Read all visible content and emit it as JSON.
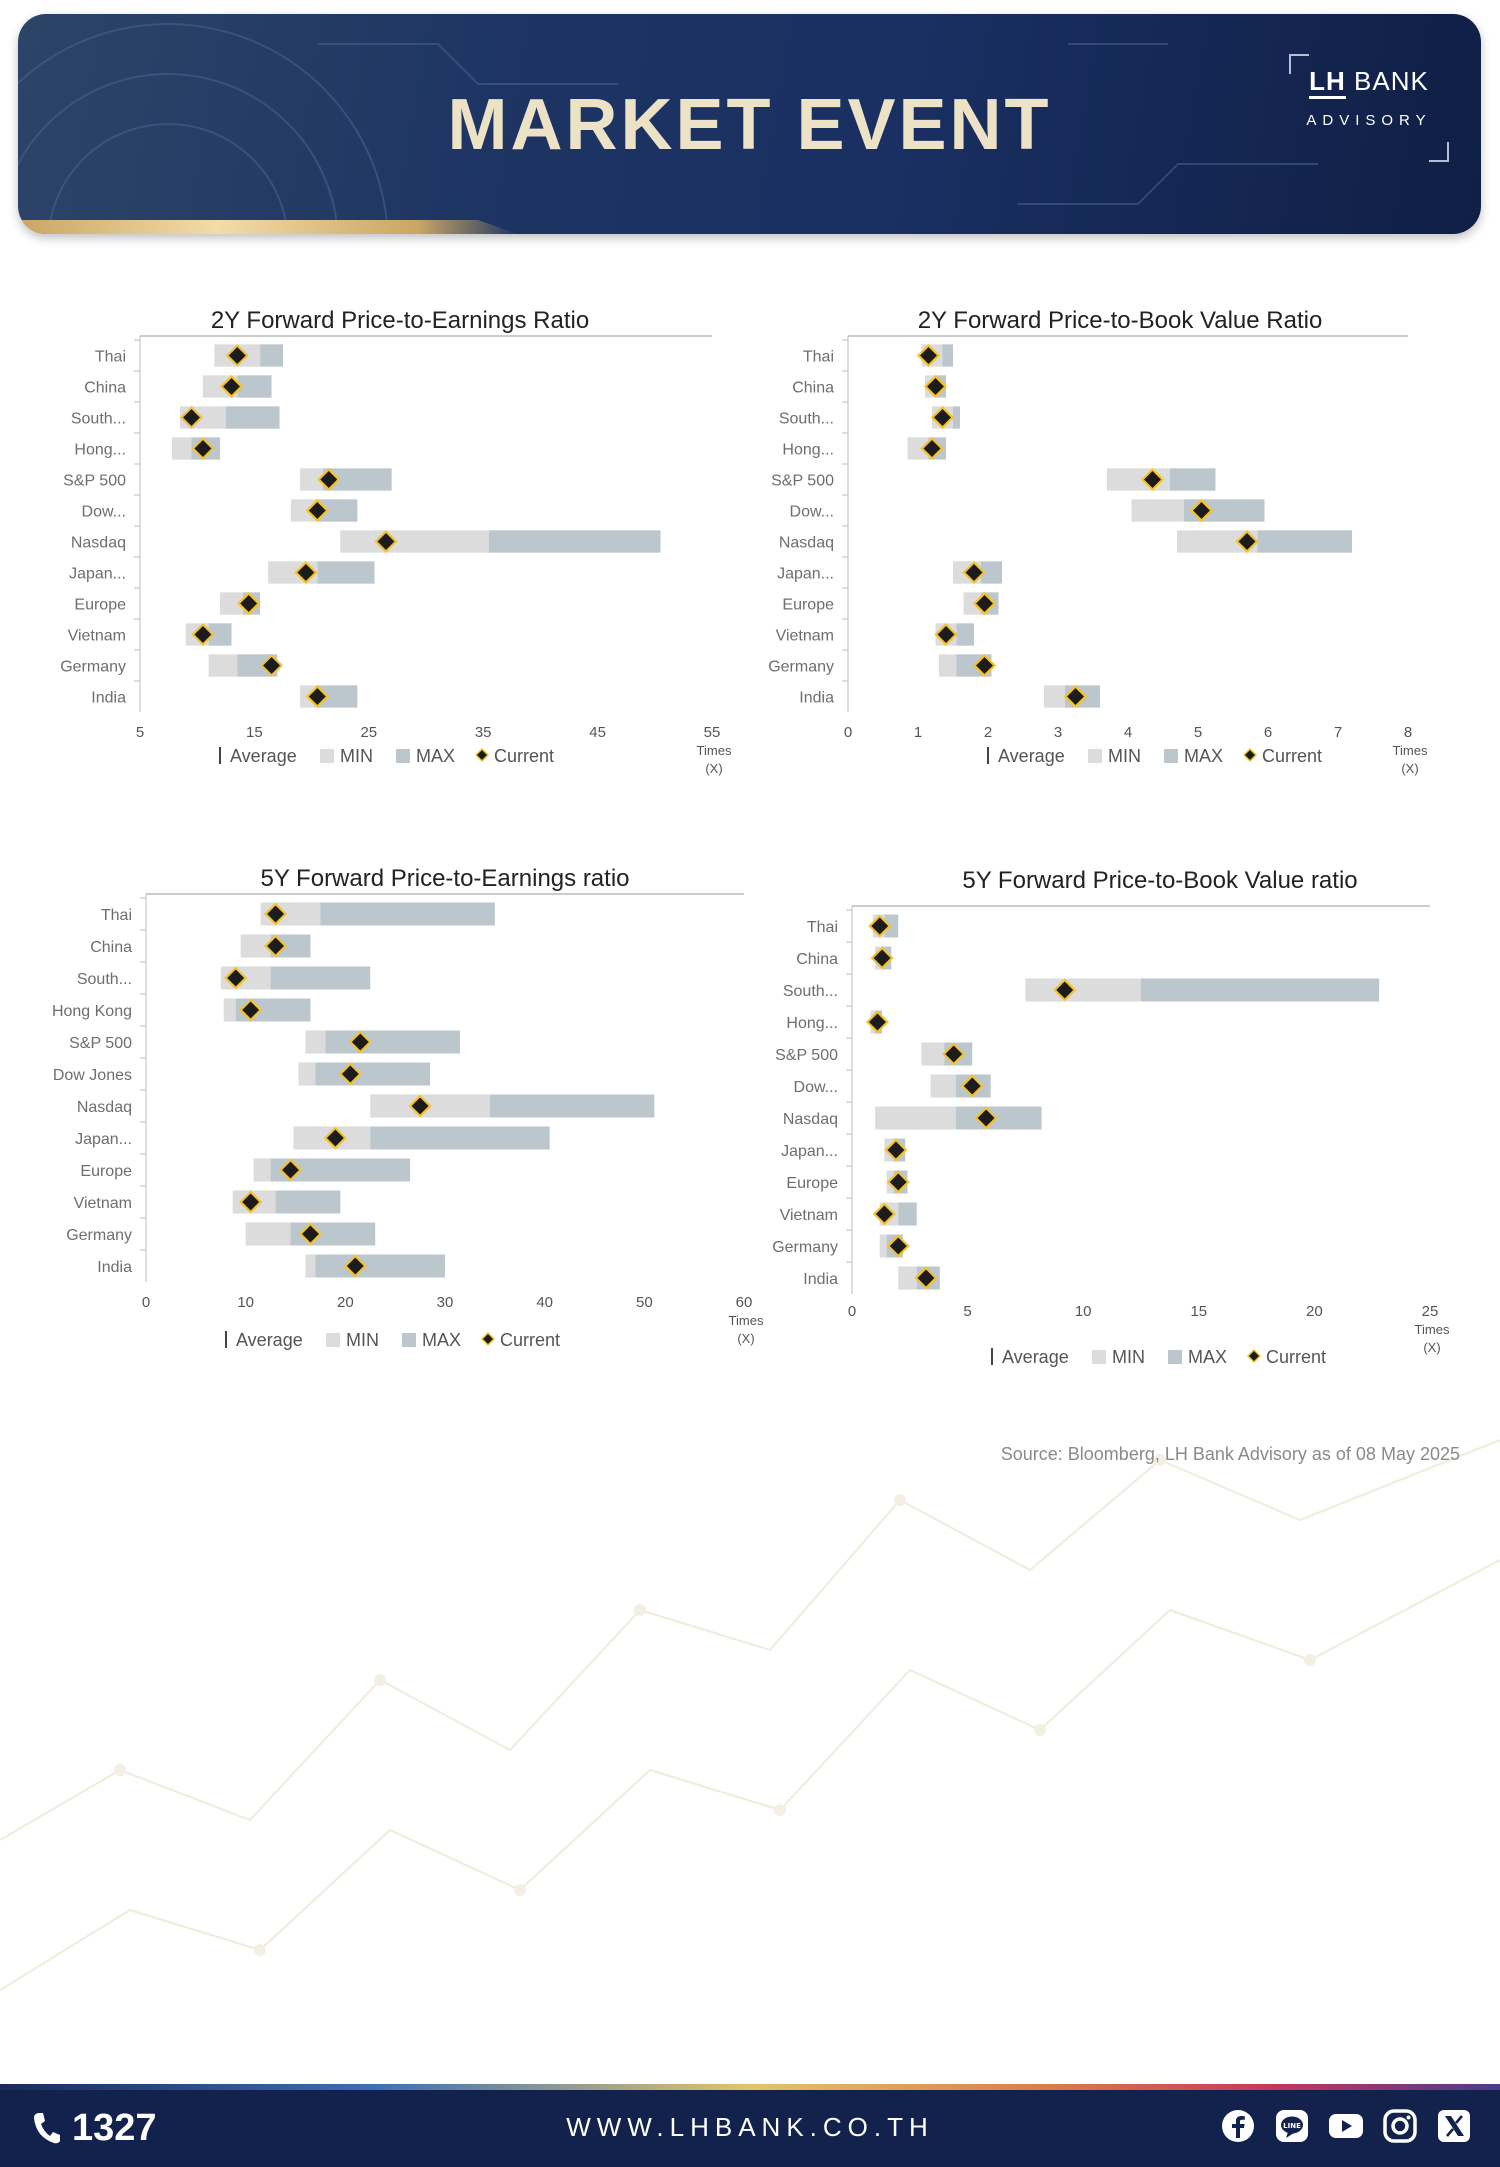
{
  "header": {
    "title": "MARKET EVENT",
    "logo_main_lh": "LH",
    "logo_main_bank": "BANK",
    "logo_sub": "ADVISORY"
  },
  "legend": {
    "average": "Average",
    "min": "MIN",
    "max": "MAX",
    "current": "Current"
  },
  "colors": {
    "min": "#dcdcdc",
    "max": "#bcc7cd",
    "current": "#1c1c1c",
    "current_outline": "#f2c230",
    "header_bg": "#1a2f62",
    "footer_bg": "#13224d"
  },
  "chart_data": [
    {
      "type": "bar",
      "title": "2Y Forward Price-to-Earnings Ratio",
      "unit_label": "Times (X)",
      "xlim": [
        5,
        55
      ],
      "xticks": [
        5,
        15,
        25,
        35,
        45,
        55
      ],
      "categories": [
        "Thai",
        "China",
        "South...",
        "Hong...",
        "S&P 500",
        "Dow...",
        "Nasdaq",
        "Japan...",
        "Europe",
        "Vietnam",
        "Germany",
        "India"
      ],
      "series": [
        {
          "name": "MIN",
          "lo": [
            11.5,
            10.5,
            8.5,
            7.8,
            19.0,
            18.2,
            22.5,
            16.2,
            12.0,
            9.0,
            11.0,
            19.0
          ],
          "hi": [
            15.5,
            13.5,
            12.5,
            9.5,
            21.0,
            20.5,
            35.5,
            20.5,
            14.0,
            11.0,
            13.5,
            20.5
          ]
        },
        {
          "name": "MAX",
          "lo": [
            15.5,
            13.5,
            12.5,
            9.5,
            21.0,
            20.5,
            35.5,
            20.5,
            14.0,
            11.0,
            13.5,
            20.5
          ],
          "hi": [
            17.5,
            16.5,
            17.2,
            12.0,
            27.0,
            24.0,
            50.5,
            25.5,
            15.5,
            13.0,
            17.0,
            24.0
          ]
        },
        {
          "name": "Current",
          "values": [
            13.5,
            13.0,
            9.5,
            10.5,
            21.5,
            20.5,
            26.5,
            19.5,
            14.5,
            10.5,
            16.5,
            20.5
          ]
        }
      ]
    },
    {
      "type": "bar",
      "title": "2Y Forward Price-to-Book Value Ratio",
      "unit_label": "Times (X)",
      "xlim": [
        0,
        8
      ],
      "xticks": [
        0,
        1,
        2,
        3,
        4,
        5,
        6,
        7,
        8
      ],
      "categories": [
        "Thai",
        "China",
        "South...",
        "Hong...",
        "S&P 500",
        "Dow...",
        "Nasdaq",
        "Japan...",
        "Europe",
        "Vietnam",
        "Germany",
        "India"
      ],
      "series": [
        {
          "name": "MIN",
          "lo": [
            1.05,
            1.1,
            1.2,
            0.85,
            3.7,
            4.05,
            4.7,
            1.5,
            1.65,
            1.25,
            1.3,
            2.8
          ],
          "hi": [
            1.35,
            1.25,
            1.5,
            1.15,
            4.6,
            4.8,
            5.85,
            1.9,
            1.9,
            1.55,
            1.55,
            3.1
          ]
        },
        {
          "name": "MAX",
          "lo": [
            1.35,
            1.25,
            1.5,
            1.15,
            4.6,
            4.8,
            5.85,
            1.9,
            1.9,
            1.55,
            1.55,
            3.1
          ],
          "hi": [
            1.5,
            1.4,
            1.6,
            1.4,
            5.25,
            5.95,
            7.2,
            2.2,
            2.15,
            1.8,
            2.05,
            3.6
          ]
        },
        {
          "name": "Current",
          "values": [
            1.15,
            1.25,
            1.35,
            1.2,
            4.35,
            5.05,
            5.7,
            1.8,
            1.95,
            1.4,
            1.95,
            3.25
          ]
        }
      ]
    },
    {
      "type": "bar",
      "title": "5Y Forward Price-to-Earnings ratio",
      "unit_label": "Times (X)",
      "xlim": [
        0,
        60
      ],
      "xticks": [
        0,
        10,
        20,
        30,
        40,
        50,
        60
      ],
      "categories": [
        "Thai",
        "China",
        "South...",
        "Hong Kong",
        "S&P 500",
        "Dow Jones",
        "Nasdaq",
        "Japan...",
        "Europe",
        "Vietnam",
        "Germany",
        "India"
      ],
      "series": [
        {
          "name": "MIN",
          "lo": [
            11.5,
            9.5,
            7.5,
            7.8,
            16.0,
            15.3,
            22.5,
            14.8,
            10.8,
            8.7,
            10.0,
            16.0
          ],
          "hi": [
            17.5,
            12.5,
            12.5,
            9.0,
            18.0,
            17.0,
            34.5,
            22.5,
            12.5,
            13.0,
            14.5,
            17.0
          ]
        },
        {
          "name": "MAX",
          "lo": [
            17.5,
            12.5,
            12.5,
            9.0,
            18.0,
            17.0,
            34.5,
            22.5,
            12.5,
            13.0,
            14.5,
            17.0
          ],
          "hi": [
            35.0,
            16.5,
            22.5,
            16.5,
            31.5,
            28.5,
            51.0,
            40.5,
            26.5,
            19.5,
            23.0,
            30.0
          ]
        },
        {
          "name": "Current",
          "values": [
            13.0,
            13.0,
            9.0,
            10.5,
            21.5,
            20.5,
            27.5,
            19.0,
            14.5,
            10.5,
            16.5,
            21.0
          ]
        }
      ]
    },
    {
      "type": "bar",
      "title": "5Y Forward Price-to-Book Value ratio",
      "unit_label": "Times (X)",
      "xlim": [
        0,
        25
      ],
      "xticks": [
        0,
        5,
        10,
        15,
        20,
        25
      ],
      "categories": [
        "Thai",
        "China",
        "South...",
        "Hong...",
        "S&P 500",
        "Dow...",
        "Nasdaq",
        "Japan...",
        "Europe",
        "Vietnam",
        "Germany",
        "India"
      ],
      "series": [
        {
          "name": "MIN",
          "lo": [
            0.9,
            1.0,
            7.5,
            0.8,
            3.0,
            3.4,
            1.0,
            1.4,
            1.5,
            1.2,
            1.2,
            2.0
          ],
          "hi": [
            1.4,
            1.3,
            12.5,
            1.0,
            4.0,
            4.5,
            4.5,
            1.8,
            1.8,
            2.0,
            1.5,
            2.8
          ]
        },
        {
          "name": "MAX",
          "lo": [
            1.4,
            1.3,
            12.5,
            1.0,
            4.0,
            4.5,
            4.5,
            1.8,
            1.8,
            2.0,
            1.5,
            2.8
          ],
          "hi": [
            2.0,
            1.7,
            22.8,
            1.3,
            5.2,
            6.0,
            8.2,
            2.3,
            2.4,
            2.8,
            2.2,
            3.8
          ]
        },
        {
          "name": "Current",
          "values": [
            1.2,
            1.3,
            9.2,
            1.1,
            4.4,
            5.2,
            5.8,
            1.9,
            2.0,
            1.4,
            2.0,
            3.2
          ]
        }
      ]
    }
  ],
  "source": "Source: Bloomberg,  LH Bank Advisory  as of 08 May 2025",
  "footer": {
    "phone": "1327",
    "website": "WWW.LHBANK.CO.TH"
  }
}
